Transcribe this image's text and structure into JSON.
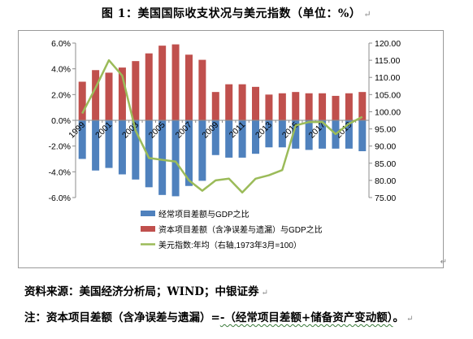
{
  "figure": {
    "title": "图 1：美国国际收支状况与美元指数（单位：%）",
    "source": "资料来源：美国经济分析局；WIND；中银证券",
    "note_parts": [
      "注：资本项目差额（含净误差与遗漏）=",
      "-（经常项目差额+储备资产变动额）",
      "。"
    ],
    "para_mark": "↵"
  },
  "chart_data": {
    "type": "bar+line",
    "categories": [
      "1999",
      "2000",
      "2001",
      "2002",
      "2003",
      "2004",
      "2005",
      "2006",
      "2007",
      "2008",
      "2009",
      "2010",
      "2011",
      "2012",
      "2013",
      "2014",
      "2015",
      "2016",
      "2017",
      "2018",
      "2019",
      "2020"
    ],
    "x_tick_labels": [
      "1999",
      "2001",
      "2003",
      "2005",
      "2007",
      "2009",
      "2011",
      "2013",
      "2015",
      "2017",
      "2019"
    ],
    "left_axis": {
      "ticks": [
        "6.0%",
        "4.0%",
        "2.0%",
        "0.0%",
        "-2.0%",
        "-4.0%",
        "-6.0%"
      ],
      "ylim": [
        -6.0,
        6.0
      ]
    },
    "right_axis": {
      "ticks": [
        "120.00",
        "115.00",
        "110.00",
        "105.00",
        "100.00",
        "95.00",
        "90.00",
        "85.00",
        "80.00",
        "75.00"
      ],
      "ylim": [
        75,
        120
      ]
    },
    "series": [
      {
        "name": "经常项目差额与GDP之比",
        "type": "bar",
        "axis": "left",
        "color": "#4f81bd",
        "values": [
          -3.0,
          -3.9,
          -3.7,
          -4.2,
          -4.6,
          -5.2,
          -5.8,
          -5.9,
          -5.1,
          -4.7,
          -2.7,
          -2.9,
          -2.9,
          -2.6,
          -2.1,
          -2.1,
          -2.2,
          -2.3,
          -2.2,
          -2.2,
          -2.2,
          -2.4
        ]
      },
      {
        "name": "资本项目差额（含净误差与遗漏）与GDP之比",
        "type": "bar",
        "axis": "left",
        "color": "#c0504d",
        "values": [
          3.0,
          3.9,
          3.7,
          4.1,
          4.6,
          5.2,
          5.8,
          5.9,
          5.1,
          4.7,
          2.2,
          2.8,
          2.8,
          2.6,
          2.0,
          2.1,
          2.2,
          2.1,
          2.1,
          1.9,
          2.1,
          2.2
        ]
      },
      {
        "name": "美元指数:年均（右轴,1973年3月=100）",
        "type": "line",
        "axis": "right",
        "color": "#9bbb59",
        "values": [
          99.5,
          107.0,
          115.0,
          110.5,
          94.5,
          86.5,
          86.0,
          85.5,
          80.0,
          77.0,
          80.0,
          80.5,
          76.5,
          80.5,
          81.5,
          83.0,
          96.0,
          97.0,
          97.0,
          93.5,
          96.5,
          98.5
        ]
      }
    ],
    "legend_position": "bottom",
    "grid": false
  }
}
